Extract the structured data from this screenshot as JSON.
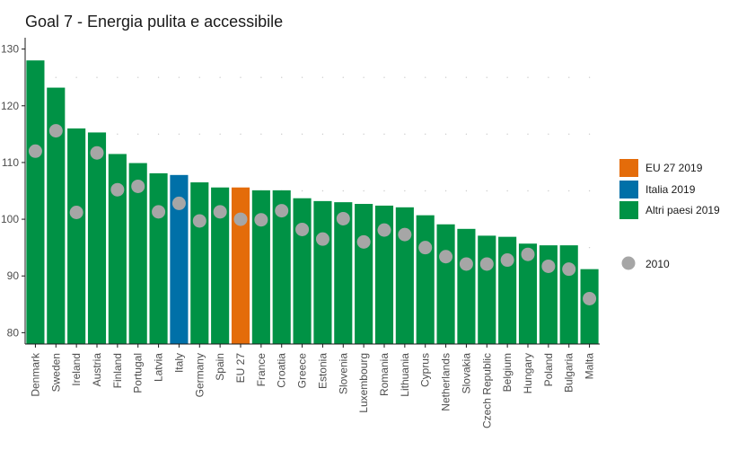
{
  "chart_data": {
    "type": "bar",
    "title": "Goal 7 - Energia pulita e accessibile",
    "xlabel": "",
    "ylabel": "",
    "ylim": [
      78,
      132
    ],
    "yticks": [
      80,
      90,
      100,
      110,
      120,
      130
    ],
    "grid": "dotted minor points",
    "legend_position": "right",
    "colors": {
      "eu": "#E46C0A",
      "italia": "#0070A8",
      "altri": "#009245",
      "year2010": "#A6A6A6"
    },
    "categories": [
      "Denmark",
      "Sweden",
      "Ireland",
      "Austria",
      "Finland",
      "Portugal",
      "Latvia",
      "Italy",
      "Germany",
      "Spain",
      "EU 27",
      "France",
      "Croatia",
      "Greece",
      "Estonia",
      "Slovenia",
      "Luxembourg",
      "Romania",
      "Lithuania",
      "Cyprus",
      "Netherlands",
      "Slovakia",
      "Czech Republic",
      "Belgium",
      "Hungary",
      "Poland",
      "Bulgaria",
      "Malta"
    ],
    "groups": [
      "altri",
      "altri",
      "altri",
      "altri",
      "altri",
      "altri",
      "altri",
      "italia",
      "altri",
      "altri",
      "eu",
      "altri",
      "altri",
      "altri",
      "altri",
      "altri",
      "altri",
      "altri",
      "altri",
      "altri",
      "altri",
      "altri",
      "altri",
      "altri",
      "altri",
      "altri",
      "altri",
      "altri"
    ],
    "series": [
      {
        "name": "2019",
        "values": [
          128.0,
          123.2,
          116.0,
          115.3,
          111.5,
          109.9,
          108.1,
          107.8,
          106.5,
          105.6,
          105.6,
          105.1,
          105.1,
          103.7,
          103.2,
          103.0,
          102.7,
          102.4,
          102.1,
          100.7,
          99.1,
          98.3,
          97.1,
          96.9,
          95.7,
          95.4,
          95.4,
          91.2
        ]
      },
      {
        "name": "2010",
        "values": [
          112.0,
          115.6,
          101.2,
          111.7,
          105.2,
          105.8,
          101.3,
          102.8,
          99.7,
          101.3,
          100.0,
          99.9,
          101.5,
          98.2,
          96.5,
          100.1,
          96.0,
          98.1,
          97.3,
          95.0,
          93.4,
          92.1,
          92.1,
          92.8,
          93.8,
          91.7,
          91.2,
          86.0
        ]
      }
    ],
    "legend": [
      {
        "key": "eu",
        "label": "EU 27 2019"
      },
      {
        "key": "italia",
        "label": "Italia 2019"
      },
      {
        "key": "altri",
        "label": "Altri paesi 2019"
      },
      {
        "key": "year2010",
        "label": "2010"
      }
    ]
  }
}
